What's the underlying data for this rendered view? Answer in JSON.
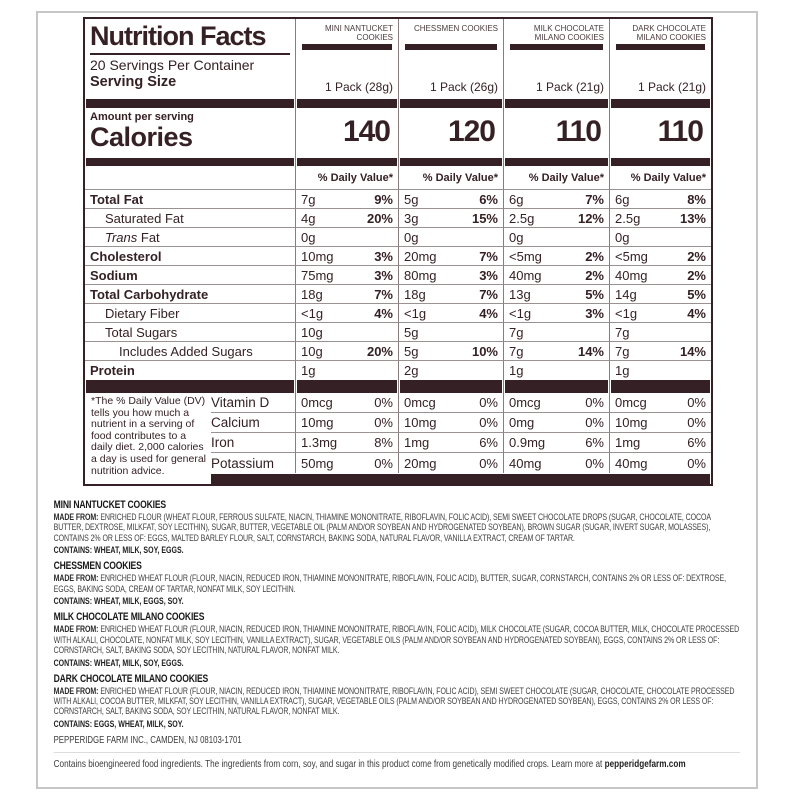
{
  "accent_color": "#352125",
  "header": {
    "title": "Nutrition Facts",
    "servings_per_container": "20 Servings Per Container",
    "serving_size_label": "Serving Size",
    "amount_per_serving": "Amount per serving",
    "calories_label": "Calories",
    "daily_value_header": "% Daily Value*"
  },
  "products": [
    {
      "name": "MINI NANTUCKET COOKIES",
      "serving": "1 Pack (28g)",
      "calories": "140"
    },
    {
      "name": "CHESSMEN COOKIES",
      "serving": "1 Pack (26g)",
      "calories": "120"
    },
    {
      "name": "MILK CHOCOLATE MILANO COOKIES",
      "serving": "1 Pack (21g)",
      "calories": "110"
    },
    {
      "name": "DARK CHOCOLATE MILANO COOKIES",
      "serving": "1 Pack (21g)",
      "calories": "110"
    }
  ],
  "nutrients": [
    {
      "label": "Total Fat",
      "v": [
        {
          "a": "7g",
          "d": "9%"
        },
        {
          "a": "5g",
          "d": "6%"
        },
        {
          "a": "6g",
          "d": "7%"
        },
        {
          "a": "6g",
          "d": "8%"
        }
      ]
    },
    {
      "label": "Saturated Fat",
      "v": [
        {
          "a": "4g",
          "d": "20%"
        },
        {
          "a": "3g",
          "d": "15%"
        },
        {
          "a": "2.5g",
          "d": "12%"
        },
        {
          "a": "2.5g",
          "d": "13%"
        }
      ]
    },
    {
      "label_italic": "Trans",
      "label_rest": " Fat",
      "v": [
        {
          "a": "0g",
          "d": ""
        },
        {
          "a": "0g",
          "d": ""
        },
        {
          "a": "0g",
          "d": ""
        },
        {
          "a": "0g",
          "d": ""
        }
      ]
    },
    {
      "label": "Cholesterol",
      "v": [
        {
          "a": "10mg",
          "d": "3%"
        },
        {
          "a": "20mg",
          "d": "7%"
        },
        {
          "a": "<5mg",
          "d": "2%"
        },
        {
          "a": "<5mg",
          "d": "2%"
        }
      ]
    },
    {
      "label": "Sodium",
      "v": [
        {
          "a": "75mg",
          "d": "3%"
        },
        {
          "a": "80mg",
          "d": "3%"
        },
        {
          "a": "40mg",
          "d": "2%"
        },
        {
          "a": "40mg",
          "d": "2%"
        }
      ]
    },
    {
      "label": "Total Carbohydrate",
      "v": [
        {
          "a": "18g",
          "d": "7%"
        },
        {
          "a": "18g",
          "d": "7%"
        },
        {
          "a": "13g",
          "d": "5%"
        },
        {
          "a": "14g",
          "d": "5%"
        }
      ]
    },
    {
      "label": "Dietary Fiber",
      "v": [
        {
          "a": "<1g",
          "d": "4%"
        },
        {
          "a": "<1g",
          "d": "4%"
        },
        {
          "a": "<1g",
          "d": "3%"
        },
        {
          "a": "<1g",
          "d": "4%"
        }
      ]
    },
    {
      "label": "Total Sugars",
      "v": [
        {
          "a": "10g",
          "d": ""
        },
        {
          "a": "5g",
          "d": ""
        },
        {
          "a": "7g",
          "d": ""
        },
        {
          "a": "7g",
          "d": ""
        }
      ]
    },
    {
      "label": "Includes Added Sugars",
      "v": [
        {
          "a": "10g",
          "d": "20%"
        },
        {
          "a": "5g",
          "d": "10%"
        },
        {
          "a": "7g",
          "d": "14%"
        },
        {
          "a": "7g",
          "d": "14%"
        }
      ]
    },
    {
      "label": "Protein",
      "v": [
        {
          "a": "1g",
          "d": ""
        },
        {
          "a": "2g",
          "d": ""
        },
        {
          "a": "1g",
          "d": ""
        },
        {
          "a": "1g",
          "d": ""
        }
      ]
    }
  ],
  "footnote": "*The % Daily Value (DV) tells you how much a nutrient in a serving of food contributes to a daily diet. 2,000 calories a day is used for general nutrition advice.",
  "vitamins": [
    {
      "label": "Vitamin D",
      "v": [
        {
          "a": "0mcg",
          "d": "0%"
        },
        {
          "a": "0mcg",
          "d": "0%"
        },
        {
          "a": "0mcg",
          "d": "0%"
        },
        {
          "a": "0mcg",
          "d": "0%"
        }
      ]
    },
    {
      "label": "Calcium",
      "v": [
        {
          "a": "10mg",
          "d": "0%"
        },
        {
          "a": "10mg",
          "d": "0%"
        },
        {
          "a": "0mg",
          "d": "0%"
        },
        {
          "a": "10mg",
          "d": "0%"
        }
      ]
    },
    {
      "label": "Iron",
      "v": [
        {
          "a": "1.3mg",
          "d": "8%"
        },
        {
          "a": "1mg",
          "d": "6%"
        },
        {
          "a": "0.9mg",
          "d": "6%"
        },
        {
          "a": "1mg",
          "d": "6%"
        }
      ]
    },
    {
      "label": "Potassium",
      "v": [
        {
          "a": "50mg",
          "d": "0%"
        },
        {
          "a": "20mg",
          "d": "0%"
        },
        {
          "a": "40mg",
          "d": "0%"
        },
        {
          "a": "40mg",
          "d": "0%"
        }
      ]
    }
  ],
  "ingredients": [
    {
      "heading": "MINI NANTUCKET COOKIES",
      "made_from_label": "MADE FROM:",
      "made_from": " ENRICHED FLOUR (WHEAT FLOUR, FERROUS SULFATE, NIACIN, THIAMINE MONONITRATE, RIBOFLAVIN, FOLIC ACID), SEMI SWEET CHOCOLATE DROPS (SUGAR, CHOCOLATE, COCOA BUTTER, DEXTROSE, MILKFAT, SOY LECITHIN), SUGAR, BUTTER, VEGETABLE OIL (PALM AND/OR SOYBEAN AND HYDROGENATED SOYBEAN), BROWN SUGAR (SUGAR, INVERT SUGAR, MOLASSES), CONTAINS 2% OR LESS OF: EGGS, MALTED BARLEY FLOUR, SALT, CORNSTARCH, BAKING SODA, NATURAL FLAVOR, VANILLA EXTRACT, CREAM OF TARTAR.",
      "contains": "CONTAINS: WHEAT, MILK, SOY, EGGS."
    },
    {
      "heading": "CHESSMEN COOKIES",
      "made_from_label": "MADE FROM:",
      "made_from": " ENRICHED WHEAT FLOUR (FLOUR, NIACIN, REDUCED IRON, THIAMINE MONONITRATE, RIBOFLAVIN, FOLIC ACID), BUTTER, SUGAR, CORNSTARCH, CONTAINS 2% OR LESS OF: DEXTROSE, EGGS, BAKING SODA, CREAM OF TARTAR, NONFAT MILK, SOY LECITHIN.",
      "contains": "CONTAINS: WHEAT, MILK, EGGS, SOY."
    },
    {
      "heading": "MILK CHOCOLATE MILANO COOKIES",
      "made_from_label": "MADE FROM:",
      "made_from": " ENRICHED WHEAT FLOUR (FLOUR, NIACIN, REDUCED IRON, THIAMINE MONONITRATE, RIBOFLAVIN, FOLIC ACID), MILK CHOCOLATE (SUGAR, COCOA BUTTER, MILK, CHOCOLATE PROCESSED WITH ALKALI, CHOCOLATE, NONFAT MILK, SOY LECITHIN, VANILLA EXTRACT), SUGAR, VEGETABLE OILS (PALM AND/OR SOYBEAN AND HYDROGENATED SOYBEAN), EGGS, CONTAINS 2% OR LESS OF: CORNSTARCH, SALT, BAKING SODA, SOY LECITHIN, NATURAL FLAVOR, NONFAT MILK.",
      "contains": "CONTAINS: WHEAT, MILK, SOY, EGGS."
    },
    {
      "heading": "DARK CHOCOLATE MILANO COOKIES",
      "made_from_label": "MADE FROM:",
      "made_from": " ENRICHED WHEAT FLOUR (FLOUR, NIACIN, REDUCED IRON, THIAMINE MONONITRATE, RIBOFLAVIN, FOLIC ACID), SEMI SWEET CHOCOLATE (SUGAR, CHOCOLATE, CHOCOLATE PROCESSED WITH ALKALI, COCOA BUTTER, MILKFAT, SOY LECITHIN, VANILLA EXTRACT), SUGAR, VEGETABLE OILS (PALM AND/OR SOYBEAN AND HYDROGENATED SOYBEAN), EGGS, CONTAINS 2% OR LESS OF: CORNSTARCH, SALT, BAKING SODA, SOY LECITHIN, NATURAL FLAVOR, NONFAT MILK.",
      "contains": "CONTAINS: EGGS, WHEAT, MILK, SOY."
    }
  ],
  "company_line": "PEPPERIDGE FARM INC., CAMDEN, NJ 08103-1701",
  "bio_statement": {
    "text": "Contains bioengineered food ingredients. The ingredients from corn, soy, and sugar in this product come from genetically modified crops. Learn more at ",
    "link": "pepperidgefarm.com"
  }
}
